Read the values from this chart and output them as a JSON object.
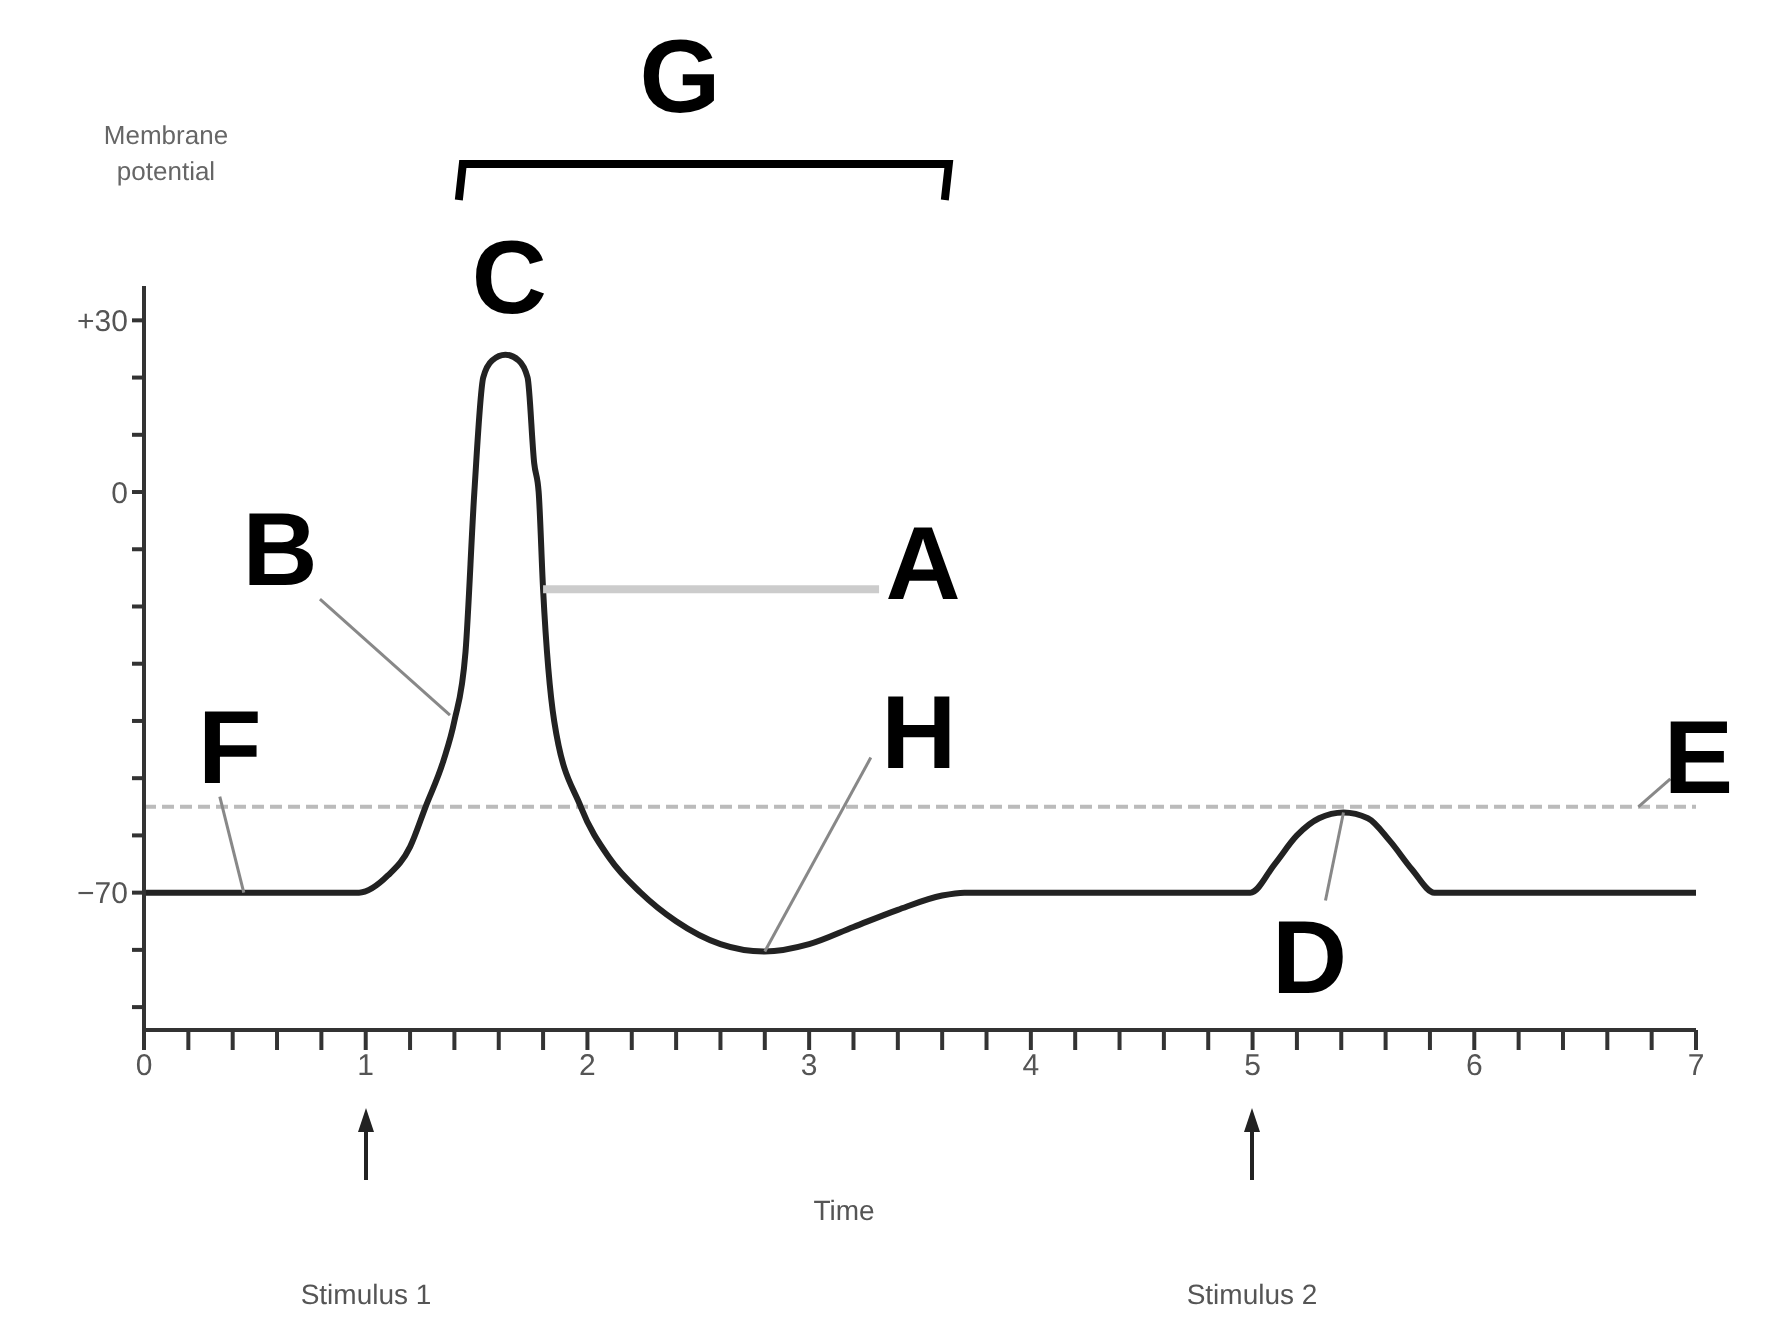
{
  "chart_data": {
    "type": "line",
    "xlabel": "Time",
    "ylabel": "Membrane potential",
    "x": [
      0,
      0.97,
      1.1,
      1.2,
      1.27,
      1.35,
      1.4,
      1.45,
      1.49,
      1.53,
      1.57,
      1.63,
      1.69,
      1.73,
      1.76,
      1.78,
      1.8,
      1.85,
      1.97,
      2.1,
      2.24,
      2.4,
      2.6,
      2.8,
      3.0,
      3.2,
      3.4,
      3.6,
      3.7,
      4.99,
      5.1,
      5.2,
      5.3,
      5.41,
      5.52,
      5.62,
      5.72,
      5.82,
      7
    ],
    "series": [
      {
        "color": "#222222",
        "values": [
          -70,
          -70,
          -67,
          -62,
          -55,
          -47,
          -40,
          -28,
          0,
          20,
          23,
          24,
          23,
          20,
          5,
          0,
          -17,
          -40,
          -55,
          -64,
          -70,
          -75,
          -79,
          -80.3,
          -79,
          -76,
          -73,
          -70.5,
          -70,
          -70,
          -65,
          -60,
          -57,
          -56,
          -57,
          -61,
          -66,
          -70,
          -70
        ]
      }
    ],
    "xlim": [
      0,
      7
    ],
    "xticks": [
      0,
      {
        "value": 0.2,
        "label": null
      },
      {
        "value": 0.4,
        "label": null
      },
      {
        "value": 0.6,
        "label": null
      },
      {
        "value": 0.8,
        "label": null
      },
      1,
      {
        "value": 1.2,
        "label": null
      },
      {
        "value": 1.4,
        "label": null
      },
      {
        "value": 1.6,
        "label": null
      },
      {
        "value": 1.8,
        "label": null
      },
      2,
      {
        "value": 2.2,
        "label": null
      },
      {
        "value": 2.4,
        "label": null
      },
      {
        "value": 2.6,
        "label": null
      },
      {
        "value": 2.8,
        "label": null
      },
      3,
      {
        "value": 3.2,
        "label": null
      },
      {
        "value": 3.4,
        "label": null
      },
      {
        "value": 3.6,
        "label": null
      },
      {
        "value": 3.8,
        "label": null
      },
      4,
      {
        "value": 4.2,
        "label": null
      },
      {
        "value": 4.4,
        "label": null
      },
      {
        "value": 4.6,
        "label": null
      },
      {
        "value": 4.8,
        "label": null
      },
      5,
      {
        "value": 5.2,
        "label": null
      },
      {
        "value": 5.4,
        "label": null
      },
      {
        "value": 5.6,
        "label": null
      },
      {
        "value": 5.8,
        "label": null
      },
      6,
      {
        "value": 6.2,
        "label": null
      },
      {
        "value": 6.4,
        "label": null
      },
      {
        "value": 6.6,
        "label": null
      },
      {
        "value": 6.8,
        "label": null
      },
      7
    ],
    "ylim": [
      -94,
      36
    ],
    "yticks": [
      {
        "value": 30,
        "label": "+30"
      },
      {
        "value": 20,
        "label": null
      },
      {
        "value": 10,
        "label": null
      },
      0,
      {
        "value": -10,
        "label": null
      },
      {
        "value": -20,
        "label": null
      },
      {
        "value": -30,
        "label": null
      },
      {
        "value": -40,
        "label": null
      },
      {
        "value": -50,
        "label": null
      },
      {
        "value": -60,
        "label": null
      },
      {
        "value": -70,
        "label": "−70"
      },
      {
        "value": -80,
        "label": null
      },
      {
        "value": -90,
        "label": null
      }
    ],
    "ref_lines": [
      {
        "axis": "y",
        "value": -55,
        "color": "#bbbbbb",
        "line_style": "dashed"
      }
    ],
    "annotations": [
      {
        "text": "A",
        "x": 1.8,
        "y": -17
      },
      {
        "text": "B",
        "x": 1.38,
        "y": -39
      },
      {
        "text": "C",
        "x": 1.63,
        "y": 24
      },
      {
        "text": "D",
        "x": 5.41,
        "y": -56
      },
      {
        "text": "E",
        "x": 6.74,
        "y": -55
      },
      {
        "text": "F",
        "x": 0.45,
        "y": -70
      },
      "G",
      {
        "text": "H",
        "x": 2.8,
        "y": -80.3
      },
      "Stimulus 1",
      "Stimulus 2"
    ],
    "marker": "none"
  }
}
